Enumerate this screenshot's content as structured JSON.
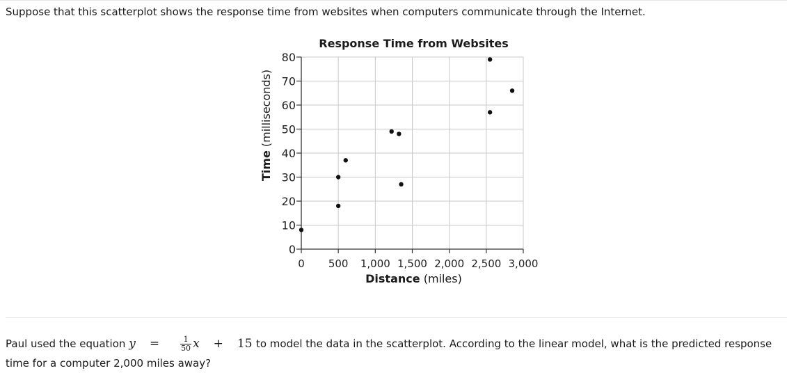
{
  "intro_text": "Suppose that this scatterplot shows the response time from websites when computers communicate through the Internet.",
  "chart_data": {
    "type": "scatter",
    "title": "Response Time from Websites",
    "xlabel_bold": "Distance",
    "xlabel_unit": "(miles)",
    "ylabel_bold": "Time",
    "ylabel_unit": "(milliseconds)",
    "xlim": [
      0,
      3000
    ],
    "ylim": [
      0,
      80
    ],
    "xticks": [
      0,
      500,
      1000,
      1500,
      2000,
      2500,
      3000
    ],
    "xtick_labels": [
      "0",
      "500",
      "1,000",
      "1,500",
      "2,000",
      "2,500",
      "3,000"
    ],
    "yticks": [
      0,
      10,
      20,
      30,
      40,
      50,
      60,
      70,
      80
    ],
    "ytick_labels": [
      "0",
      "10",
      "20",
      "30",
      "40",
      "50",
      "60",
      "70",
      "80"
    ],
    "grid": true,
    "points": [
      {
        "x": 0,
        "y": 8
      },
      {
        "x": 500,
        "y": 18
      },
      {
        "x": 500,
        "y": 30
      },
      {
        "x": 600,
        "y": 37
      },
      {
        "x": 1220,
        "y": 49
      },
      {
        "x": 1320,
        "y": 48
      },
      {
        "x": 1350,
        "y": 27
      },
      {
        "x": 2550,
        "y": 79
      },
      {
        "x": 2550,
        "y": 57
      },
      {
        "x": 2850,
        "y": 66
      }
    ]
  },
  "question": {
    "prefix": "Paul used the equation",
    "var_y": "y",
    "equals": "=",
    "frac_num": "1",
    "frac_den": "50",
    "var_x": "x",
    "plus": "+",
    "constant": "15",
    "suffix": "to model the data in the scatterplot. According to the linear model, what is the predicted response time for a computer 2,000 miles away?"
  }
}
